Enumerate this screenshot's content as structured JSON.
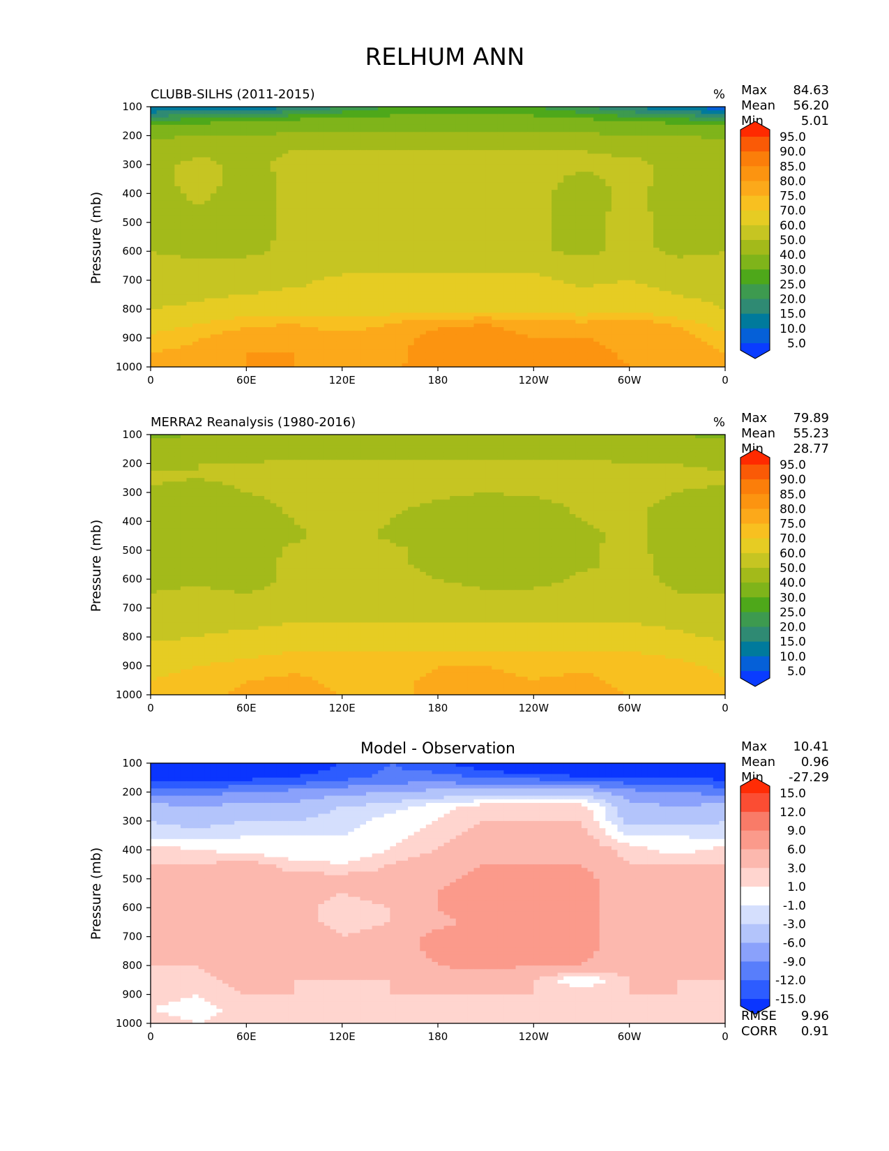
{
  "figure_title": "RELHUM ANN",
  "colors": {
    "abs_levels": [
      "#0a3cff",
      "#0560d8",
      "#007a9c",
      "#2f8a73",
      "#3d9a4f",
      "#4ea81a",
      "#7fb41a",
      "#a3ba1a",
      "#c6c522",
      "#e6cc23",
      "#f8c020",
      "#fca91a",
      "#fc9410",
      "#fb7e0a",
      "#fa5a06",
      "#ff2a00"
    ],
    "diff_levels": [
      "#0a35ff",
      "#2d5cff",
      "#587efb",
      "#8aa1fb",
      "#b3c4fb",
      "#d5dffd",
      "#ffffff",
      "#ffd5cf",
      "#fcb8ae",
      "#fb9a8b",
      "#f97b68",
      "#fb4d33",
      "#ff2c05"
    ]
  },
  "panels": [
    {
      "label": "CLUBB-SILHS (2011-2015)",
      "units": "%",
      "stats": {
        "max_label": "Max",
        "max": "84.63",
        "mean_label": "Mean",
        "mean": "56.20",
        "min_label": "Min",
        "min": "5.01"
      },
      "ylabel": "Pressure (mb)",
      "colorbar_ticks": [
        "95.0",
        "90.0",
        "85.0",
        "80.0",
        "75.0",
        "70.0",
        "60.0",
        "50.0",
        "40.0",
        "30.0",
        "25.0",
        "20.0",
        "15.0",
        "10.0",
        "5.0"
      ]
    },
    {
      "label": "MERRA2 Reanalysis (1980-2016)",
      "units": "%",
      "stats": {
        "max_label": "Max",
        "max": "79.89",
        "mean_label": "Mean",
        "mean": "55.23",
        "min_label": "Min",
        "min": "28.77"
      },
      "ylabel": "Pressure (mb)",
      "colorbar_ticks": [
        "95.0",
        "90.0",
        "85.0",
        "80.0",
        "75.0",
        "70.0",
        "60.0",
        "50.0",
        "40.0",
        "30.0",
        "25.0",
        "20.0",
        "15.0",
        "10.0",
        "5.0"
      ]
    },
    {
      "label": "Model - Observation",
      "units": "",
      "stats": {
        "max_label": "Max",
        "max": "10.41",
        "mean_label": "Mean",
        "mean": "0.96",
        "min_label": "Min",
        "min": "-27.29"
      },
      "ylabel": "Pressure (mb)",
      "colorbar_ticks": [
        "15.0",
        "12.0",
        "9.0",
        "6.0",
        "3.0",
        "1.0",
        "-1.0",
        "-3.0",
        "-6.0",
        "-9.0",
        "-12.0",
        "-15.0"
      ],
      "extra_stats": {
        "rmse_label": "RMSE",
        "rmse": "9.96",
        "corr_label": "CORR",
        "corr": "0.91"
      }
    }
  ],
  "chart_data": [
    {
      "type": "heatmap",
      "title": "CLUBB-SILHS (2011-2015)",
      "xlabel": "",
      "ylabel": "Pressure (mb)",
      "x_ticks": [
        "0",
        "60E",
        "120E",
        "180",
        "120W",
        "60W",
        "0"
      ],
      "x_tick_values": [
        0,
        60,
        120,
        180,
        240,
        300,
        360
      ],
      "xlim": [
        0,
        360
      ],
      "y_ticks": [
        "100",
        "200",
        "300",
        "400",
        "500",
        "600",
        "700",
        "800",
        "900",
        "1000"
      ],
      "y_tick_values": [
        100,
        200,
        300,
        400,
        500,
        600,
        700,
        800,
        900,
        1000
      ],
      "ylim": [
        100,
        1000
      ],
      "levels": [
        5,
        10,
        15,
        20,
        25,
        30,
        40,
        50,
        60,
        70,
        75,
        80,
        85,
        90,
        95
      ],
      "rows_pressure": [
        100,
        150,
        200,
        250,
        300,
        350,
        400,
        450,
        500,
        550,
        600,
        650,
        700,
        750,
        800,
        850,
        900,
        950,
        1000
      ],
      "cols_lon": [
        0,
        30,
        60,
        90,
        120,
        150,
        180,
        210,
        240,
        270,
        300,
        330,
        360
      ],
      "values": [
        [
          8,
          12,
          10,
          14,
          20,
          25,
          28,
          27,
          25,
          20,
          15,
          10,
          6
        ],
        [
          25,
          28,
          30,
          32,
          33,
          33,
          33,
          33,
          33,
          32,
          30,
          28,
          25
        ],
        [
          38,
          40,
          40,
          42,
          42,
          42,
          42,
          42,
          42,
          42,
          40,
          40,
          38
        ],
        [
          47,
          48,
          48,
          50,
          50,
          50,
          50,
          50,
          50,
          50,
          48,
          48,
          47
        ],
        [
          48,
          52,
          48,
          52,
          55,
          55,
          55,
          55,
          55,
          52,
          52,
          48,
          48
        ],
        [
          47,
          53,
          47,
          52,
          55,
          55,
          55,
          55,
          53,
          48,
          52,
          48,
          47
        ],
        [
          46,
          52,
          46,
          53,
          55,
          55,
          55,
          55,
          52,
          47,
          52,
          47,
          46
        ],
        [
          45,
          50,
          45,
          53,
          55,
          55,
          55,
          55,
          52,
          47,
          52,
          47,
          45
        ],
        [
          46,
          48,
          45,
          53,
          55,
          55,
          55,
          55,
          52,
          47,
          53,
          47,
          46
        ],
        [
          47,
          47,
          46,
          53,
          55,
          56,
          56,
          56,
          52,
          47,
          53,
          47,
          47
        ],
        [
          50,
          48,
          47,
          53,
          56,
          57,
          57,
          57,
          52,
          47,
          53,
          48,
          50
        ],
        [
          52,
          52,
          55,
          56,
          57,
          58,
          58,
          58,
          58,
          55,
          55,
          53,
          52
        ],
        [
          55,
          56,
          57,
          58,
          62,
          62,
          62,
          62,
          62,
          58,
          60,
          57,
          55
        ],
        [
          57,
          58,
          60,
          62,
          62,
          63,
          63,
          63,
          63,
          62,
          63,
          60,
          57
        ],
        [
          60,
          62,
          66,
          66,
          67,
          67,
          67,
          67,
          67,
          66,
          68,
          64,
          60
        ],
        [
          66,
          70,
          74,
          75,
          72,
          75,
          79,
          80,
          78,
          76,
          78,
          74,
          66
        ],
        [
          72,
          75,
          78,
          78,
          77,
          78,
          82,
          82,
          80,
          80,
          79,
          78,
          72
        ],
        [
          75,
          76,
          80,
          80,
          76,
          78,
          83,
          84,
          80,
          82,
          79,
          80,
          75
        ],
        [
          78,
          78,
          80,
          80,
          78,
          79,
          83,
          83,
          82,
          82,
          80,
          80,
          78
        ]
      ]
    },
    {
      "type": "heatmap",
      "title": "MERRA2 Reanalysis (1980-2016)",
      "xlabel": "",
      "ylabel": "Pressure (mb)",
      "x_ticks": [
        "0",
        "60E",
        "120E",
        "180",
        "120W",
        "60W",
        "0"
      ],
      "x_tick_values": [
        0,
        60,
        120,
        180,
        240,
        300,
        360
      ],
      "xlim": [
        0,
        360
      ],
      "y_ticks": [
        "100",
        "200",
        "300",
        "400",
        "500",
        "600",
        "700",
        "800",
        "900",
        "1000"
      ],
      "y_tick_values": [
        100,
        200,
        300,
        400,
        500,
        600,
        700,
        800,
        900,
        1000
      ],
      "ylim": [
        100,
        1000
      ],
      "levels": [
        5,
        10,
        15,
        20,
        25,
        30,
        40,
        50,
        60,
        70,
        75,
        80,
        85,
        90,
        95
      ],
      "rows_pressure": [
        100,
        150,
        200,
        250,
        300,
        350,
        400,
        450,
        500,
        550,
        600,
        650,
        700,
        750,
        800,
        850,
        900,
        950,
        1000
      ],
      "cols_lon": [
        0,
        30,
        60,
        90,
        120,
        150,
        180,
        210,
        240,
        270,
        300,
        330,
        360
      ],
      "values": [
        [
          38,
          40,
          40,
          40,
          40,
          40,
          40,
          40,
          40,
          40,
          40,
          40,
          38
        ],
        [
          44,
          45,
          45,
          46,
          46,
          46,
          46,
          46,
          46,
          46,
          45,
          45,
          44
        ],
        [
          48,
          50,
          50,
          52,
          52,
          52,
          52,
          52,
          52,
          52,
          50,
          50,
          48
        ],
        [
          52,
          50,
          52,
          53,
          53,
          53,
          53,
          53,
          53,
          53,
          52,
          52,
          52
        ],
        [
          48,
          47,
          50,
          54,
          55,
          54,
          52,
          50,
          52,
          55,
          54,
          50,
          48
        ],
        [
          45,
          46,
          46,
          52,
          55,
          52,
          48,
          45,
          45,
          52,
          52,
          47,
          45
        ],
        [
          45,
          46,
          45,
          50,
          55,
          50,
          45,
          44,
          44,
          50,
          52,
          46,
          45
        ],
        [
          45,
          46,
          45,
          48,
          55,
          48,
          45,
          44,
          44,
          48,
          52,
          46,
          45
        ],
        [
          46,
          46,
          45,
          52,
          55,
          53,
          45,
          44,
          44,
          48,
          53,
          46,
          46
        ],
        [
          47,
          47,
          46,
          52,
          55,
          53,
          46,
          44,
          45,
          48,
          53,
          47,
          47
        ],
        [
          48,
          48,
          46,
          52,
          55,
          55,
          50,
          46,
          46,
          52,
          53,
          48,
          48
        ],
        [
          50,
          52,
          50,
          53,
          55,
          56,
          55,
          52,
          52,
          55,
          55,
          50,
          50
        ],
        [
          54,
          56,
          55,
          57,
          57,
          57,
          56,
          56,
          56,
          56,
          57,
          55,
          54
        ],
        [
          56,
          58,
          58,
          60,
          60,
          60,
          60,
          60,
          60,
          60,
          60,
          58,
          56
        ],
        [
          58,
          60,
          62,
          63,
          63,
          63,
          64,
          64,
          64,
          63,
          64,
          62,
          58
        ],
        [
          64,
          66,
          68,
          70,
          70,
          70,
          70,
          70,
          70,
          70,
          70,
          68,
          64
        ],
        [
          68,
          70,
          72,
          74,
          72,
          72,
          75,
          75,
          74,
          74,
          74,
          72,
          68
        ],
        [
          70,
          72,
          75,
          76,
          74,
          74,
          76,
          76,
          75,
          76,
          74,
          74,
          70
        ],
        [
          72,
          74,
          76,
          76,
          75,
          74,
          76,
          76,
          75,
          76,
          75,
          75,
          72
        ]
      ]
    },
    {
      "type": "heatmap",
      "title": "Model - Observation",
      "xlabel": "",
      "ylabel": "Pressure (mb)",
      "x_ticks": [
        "0",
        "60E",
        "120E",
        "180",
        "120W",
        "60W",
        "0"
      ],
      "x_tick_values": [
        0,
        60,
        120,
        180,
        240,
        300,
        360
      ],
      "xlim": [
        0,
        360
      ],
      "y_ticks": [
        "100",
        "200",
        "300",
        "400",
        "500",
        "600",
        "700",
        "800",
        "900",
        "1000"
      ],
      "y_tick_values": [
        100,
        200,
        300,
        400,
        500,
        600,
        700,
        800,
        900,
        1000
      ],
      "ylim": [
        100,
        1000
      ],
      "levels": [
        -15,
        -12,
        -9,
        -6,
        -3,
        -1,
        1,
        3,
        6,
        9,
        12,
        15
      ],
      "rows_pressure": [
        100,
        150,
        200,
        250,
        300,
        350,
        400,
        450,
        500,
        550,
        600,
        650,
        700,
        750,
        800,
        850,
        900,
        950,
        1000
      ],
      "cols_lon": [
        0,
        30,
        60,
        90,
        120,
        150,
        180,
        210,
        240,
        270,
        300,
        330,
        360
      ],
      "values": [
        [
          -27,
          -25,
          -22,
          -18,
          -15,
          -12,
          -14,
          -18,
          -22,
          -24,
          -25,
          -25,
          -27
        ],
        [
          -17,
          -17,
          -16,
          -15,
          -13,
          -11,
          -11,
          -12,
          -13,
          -14,
          -15,
          -15,
          -16
        ],
        [
          -10,
          -10,
          -9,
          -8,
          -7,
          -6,
          -5,
          -5,
          -4,
          -4,
          -8,
          -9,
          -10
        ],
        [
          -5,
          -6,
          -5,
          -5,
          -3,
          -2,
          0,
          2,
          2,
          2,
          -5,
          -6,
          -5
        ],
        [
          -3,
          -4,
          -3,
          -3,
          -2,
          0,
          1,
          3,
          3,
          3,
          -4,
          -4,
          -3
        ],
        [
          -2,
          -2,
          -1,
          -1,
          -1,
          0,
          2,
          4,
          4,
          4,
          -1,
          -1,
          -2
        ],
        [
          2,
          1,
          0,
          -1,
          -1,
          1,
          3,
          5,
          5,
          5,
          2,
          0,
          2
        ],
        [
          3,
          3,
          4,
          2,
          1,
          3,
          5,
          6,
          6,
          6,
          3,
          3,
          3
        ],
        [
          4,
          4,
          4,
          4,
          4,
          4,
          5,
          7,
          7,
          7,
          4,
          4,
          4
        ],
        [
          4,
          4,
          4,
          4,
          3,
          4,
          6,
          8,
          7,
          7,
          4,
          4,
          4
        ],
        [
          4,
          4,
          4,
          4,
          2,
          3,
          6,
          8,
          7,
          7,
          4,
          4,
          4
        ],
        [
          4,
          3,
          4,
          4,
          2,
          3,
          5,
          7,
          7,
          7,
          4,
          4,
          4
        ],
        [
          4,
          4,
          6,
          5,
          3,
          4,
          7,
          9,
          7,
          7,
          4,
          5,
          4
        ],
        [
          3,
          4,
          6,
          5,
          3,
          4,
          7,
          9,
          7,
          7,
          4,
          6,
          3
        ],
        [
          3,
          3,
          5,
          4,
          3,
          3,
          6,
          7,
          6,
          6,
          4,
          4,
          3
        ],
        [
          3,
          2,
          4,
          3,
          3,
          3,
          4,
          4,
          3,
          -1,
          3,
          3,
          3
        ],
        [
          2,
          1,
          3,
          3,
          2,
          3,
          3,
          3,
          3,
          2,
          3,
          3,
          2
        ],
        [
          1,
          0,
          2,
          2,
          1,
          2,
          2,
          2,
          2,
          2,
          2,
          2,
          1
        ],
        [
          2,
          1,
          2,
          2,
          1,
          2,
          2,
          2,
          2,
          2,
          2,
          2,
          2
        ]
      ]
    }
  ]
}
